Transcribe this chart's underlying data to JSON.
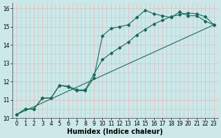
{
  "title": "",
  "xlabel": "Humidex (Indice chaleur)",
  "ylabel": "",
  "bg_color": "#cce8e8",
  "line_color": "#1a6a5a",
  "grid_color_major": "#e8b8b8",
  "grid_color_half": "#b8ccd0",
  "xlim": [
    -0.5,
    23.5
  ],
  "ylim": [
    10,
    16.3
  ],
  "xticks": [
    0,
    1,
    2,
    3,
    4,
    5,
    6,
    7,
    8,
    9,
    10,
    11,
    12,
    13,
    14,
    15,
    16,
    17,
    18,
    19,
    20,
    21,
    22,
    23
  ],
  "yticks": [
    10,
    11,
    12,
    13,
    14,
    15,
    16
  ],
  "line1_x": [
    0,
    1,
    2,
    3,
    4,
    5,
    6,
    7,
    8,
    9,
    10,
    11,
    12,
    13,
    14,
    15,
    16,
    17,
    18,
    19,
    20,
    21,
    22,
    23
  ],
  "line1_y": [
    10.2,
    10.5,
    10.5,
    11.1,
    11.1,
    11.8,
    11.7,
    11.5,
    11.5,
    12.2,
    14.5,
    14.9,
    15.0,
    15.1,
    15.5,
    15.9,
    15.7,
    15.6,
    15.5,
    15.8,
    15.6,
    15.6,
    15.3,
    15.1
  ],
  "line2_x": [
    0,
    1,
    2,
    3,
    4,
    5,
    6,
    7,
    8,
    9,
    10,
    11,
    12,
    13,
    14,
    15,
    16,
    17,
    18,
    19,
    20,
    21,
    22,
    23
  ],
  "line2_y": [
    10.2,
    10.5,
    10.5,
    11.1,
    11.1,
    11.8,
    11.75,
    11.55,
    11.55,
    12.4,
    13.2,
    13.55,
    13.85,
    14.15,
    14.55,
    14.85,
    15.15,
    15.35,
    15.55,
    15.65,
    15.75,
    15.7,
    15.55,
    15.1
  ],
  "line3_x": [
    0,
    23
  ],
  "line3_y": [
    10.2,
    15.1
  ],
  "marker": "D",
  "markersize": 2.0,
  "linewidth": 0.8,
  "xlabel_fontsize": 7,
  "tick_fontsize": 5.5
}
